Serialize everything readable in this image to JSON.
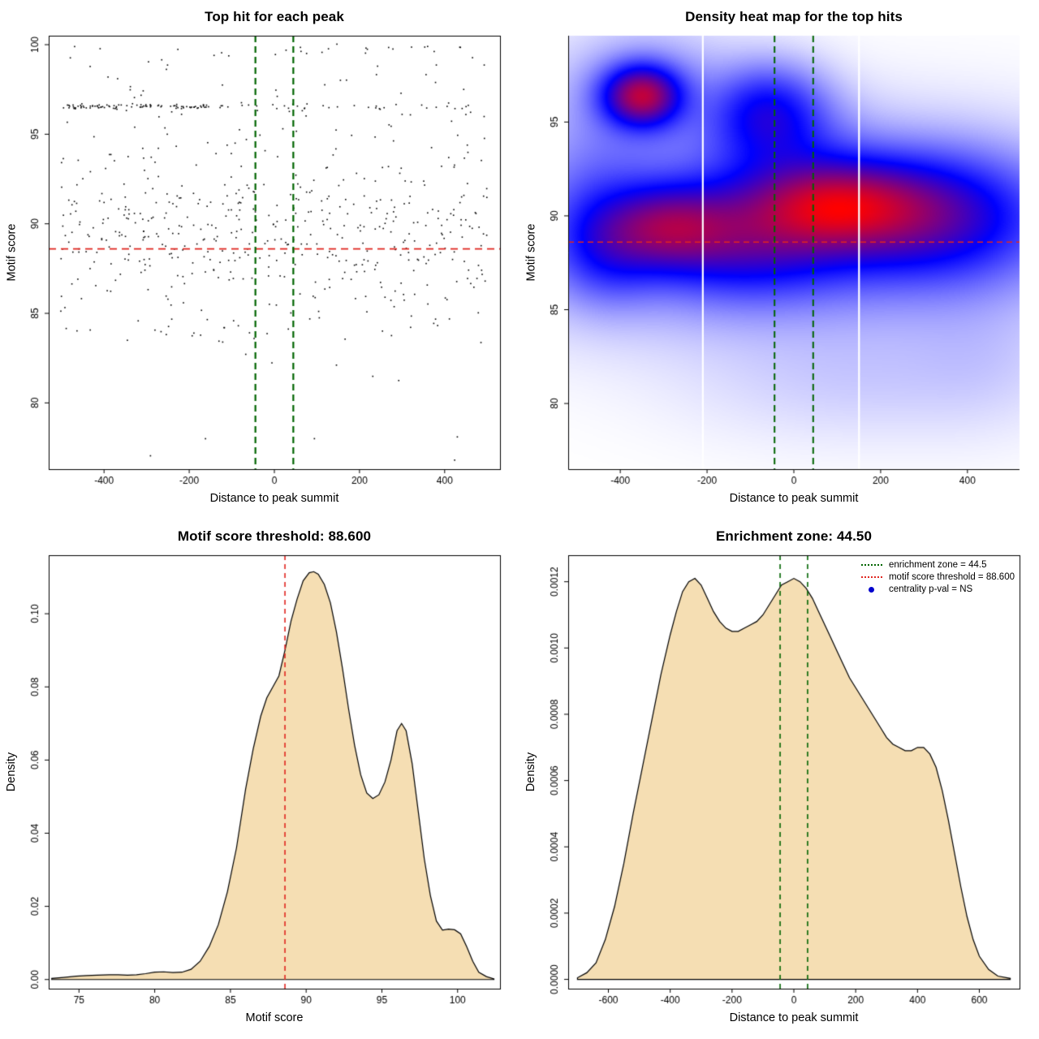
{
  "chart_data": [
    {
      "type": "scatter",
      "title": "Top hit for each peak",
      "xlabel": "Distance to peak summit",
      "ylabel": "Motif score",
      "xlim": [
        -530,
        530
      ],
      "ylim": [
        76.3,
        100.5
      ],
      "xticks": [
        -400,
        -200,
        0,
        200,
        400
      ],
      "xtick_labels": [
        "-400",
        "-200",
        "0",
        "200",
        "400"
      ],
      "yticks": [
        80,
        85,
        90,
        95,
        100
      ],
      "ytick_labels": [
        "80",
        "85",
        "90",
        "95",
        "100"
      ],
      "point_color": "#000000",
      "threshold_line": {
        "y": 88.6,
        "color": "#e0251f"
      },
      "zone_lines": {
        "x": [
          -44.5,
          44.5
        ],
        "color": "#006400"
      },
      "points_generator": {
        "seed": 88600,
        "clusters": [
          {
            "n": 95,
            "x": [
              "uniform",
              -505,
              -120
            ],
            "y": [
              "normal",
              96.55,
              0.07
            ]
          },
          {
            "n": 30,
            "x": [
              "uniform",
              -120,
              500
            ],
            "y": [
              "normal",
              96.55,
              0.1
            ]
          },
          {
            "n": 430,
            "x": [
              "uniform",
              -505,
              505
            ],
            "y": [
              "normal",
              89.5,
              2.1
            ],
            "yclip": [
              84.2,
              95.2
            ]
          },
          {
            "n": 90,
            "x": [
              "uniform",
              -505,
              505
            ],
            "y": [
              "uniform",
              93.5,
              99.9
            ]
          },
          {
            "n": 16,
            "x": [
              "uniform",
              -260,
              460
            ],
            "y": [
              "normal",
              99.8,
              0.1
            ]
          },
          {
            "n": 50,
            "x": [
              "uniform",
              -505,
              505
            ],
            "y": [
              "uniform",
              83.2,
              86.0
            ]
          },
          {
            "n": 10,
            "x": [
              "uniform",
              -480,
              480
            ],
            "y": [
              "uniform",
              76.8,
              83.5
            ]
          }
        ]
      }
    },
    {
      "type": "heatmap",
      "title": "Density heat map for the top hits",
      "xlabel": "Distance to peak summit",
      "ylabel": "Motif score",
      "xlim": [
        -520,
        520
      ],
      "ylim": [
        76.5,
        99.6
      ],
      "xticks": [
        -400,
        -200,
        0,
        200,
        400
      ],
      "xtick_labels": [
        "-400",
        "-200",
        "0",
        "200",
        "400"
      ],
      "yticks": [
        80,
        85,
        90,
        95
      ],
      "ytick_labels": [
        "80",
        "85",
        "90",
        "95"
      ],
      "colormap": [
        "#ffffff",
        "#0000ff",
        "#ff0000"
      ],
      "gaussians": [
        [
          -350,
          96.4,
          55,
          1.0,
          1.6
        ],
        [
          -340,
          96.2,
          120,
          2.0,
          0.3
        ],
        [
          -60,
          95.6,
          80,
          1.5,
          0.65
        ],
        [
          -30,
          93.6,
          110,
          1.8,
          0.35
        ],
        [
          -290,
          89.4,
          95,
          1.4,
          1.0
        ],
        [
          -430,
          88.3,
          80,
          1.8,
          0.5
        ],
        [
          90,
          90.6,
          120,
          1.4,
          1.05
        ],
        [
          210,
          90.3,
          160,
          1.8,
          0.75
        ],
        [
          -110,
          88.9,
          150,
          1.9,
          0.8
        ],
        [
          360,
          89.8,
          150,
          2.2,
          0.5
        ],
        [
          0,
          89.2,
          380,
          3.0,
          0.42
        ],
        [
          -460,
          91.5,
          90,
          2.2,
          0.18
        ],
        [
          150,
          81.5,
          230,
          2.0,
          0.055
        ],
        [
          430,
          82.8,
          110,
          2.3,
          0.045
        ]
      ],
      "white_lines_x": [
        -210,
        150
      ],
      "threshold_line": {
        "y": 88.6,
        "color": "#e0251f"
      },
      "zone_lines": {
        "x": [
          -44.5,
          44.5
        ],
        "color": "#006400"
      }
    },
    {
      "type": "density",
      "title": "Motif score threshold: 88.600",
      "xlabel": "Motif score",
      "ylabel": "Density",
      "xlim": [
        73,
        102.8
      ],
      "ylim": [
        -0.0025,
        0.116
      ],
      "xticks": [
        75,
        80,
        85,
        90,
        95,
        100
      ],
      "xtick_labels": [
        "75",
        "80",
        "85",
        "90",
        "95",
        "100"
      ],
      "yticks": [
        0.0,
        0.02,
        0.04,
        0.06,
        0.08,
        0.1
      ],
      "ytick_labels": [
        "0.00",
        "0.02",
        "0.04",
        "0.06",
        "0.08",
        "0.10"
      ],
      "fill_color": "#f5deb3",
      "line_color": "#000000",
      "vlines": [
        {
          "x": 88.6,
          "color": "#e0251f"
        }
      ],
      "curve": {
        "x": [
          73.2,
          74,
          74.8,
          75.5,
          76.2,
          77,
          77.6,
          78.2,
          78.8,
          79.4,
          80,
          80.6,
          81.2,
          81.8,
          82.4,
          83,
          83.6,
          84.2,
          84.8,
          85.4,
          86,
          86.5,
          87,
          87.4,
          87.8,
          88.2,
          88.6,
          89,
          89.4,
          89.8,
          90.2,
          90.5,
          90.8,
          91.2,
          91.6,
          92,
          92.4,
          92.8,
          93.2,
          93.6,
          94,
          94.4,
          94.8,
          95.2,
          95.6,
          96,
          96.3,
          96.6,
          97,
          97.4,
          97.8,
          98.2,
          98.6,
          99,
          99.4,
          99.8,
          100.2,
          100.6,
          101,
          101.4,
          101.9,
          102.4
        ],
        "y": [
          0.0003,
          0.0006,
          0.0009,
          0.0011,
          0.0012,
          0.0013,
          0.0013,
          0.0012,
          0.0013,
          0.0016,
          0.002,
          0.0021,
          0.0019,
          0.002,
          0.0028,
          0.005,
          0.009,
          0.015,
          0.024,
          0.036,
          0.052,
          0.063,
          0.072,
          0.077,
          0.08,
          0.083,
          0.09,
          0.098,
          0.104,
          0.109,
          0.1112,
          0.1115,
          0.1108,
          0.108,
          0.103,
          0.095,
          0.085,
          0.074,
          0.064,
          0.056,
          0.051,
          0.0495,
          0.0505,
          0.054,
          0.06,
          0.068,
          0.07,
          0.068,
          0.059,
          0.046,
          0.033,
          0.023,
          0.016,
          0.0135,
          0.0138,
          0.0136,
          0.0125,
          0.009,
          0.005,
          0.002,
          0.0008,
          0.0002
        ]
      }
    },
    {
      "type": "density",
      "title": "Enrichment zone: 44.50",
      "xlabel": "Distance to peak summit",
      "ylabel": "Density",
      "xlim": [
        -730,
        730
      ],
      "ylim": [
        -2.8e-05,
        0.00128
      ],
      "xticks": [
        -600,
        -400,
        -200,
        0,
        200,
        400,
        600
      ],
      "xtick_labels": [
        "-600",
        "-400",
        "-200",
        "0",
        "200",
        "400",
        "600"
      ],
      "yticks": [
        0.0,
        0.0002,
        0.0004,
        0.0006,
        0.0008,
        0.001,
        0.0012
      ],
      "ytick_labels": [
        "0.0000",
        "0.0002",
        "0.0004",
        "0.0006",
        "0.0008",
        "0.0010",
        "0.0012"
      ],
      "fill_color": "#f5deb3",
      "line_color": "#000000",
      "vlines": [
        {
          "x": -44.5,
          "color": "#006400"
        },
        {
          "x": 44.5,
          "color": "#006400"
        }
      ],
      "curve": {
        "x": [
          -700,
          -670,
          -640,
          -610,
          -580,
          -550,
          -520,
          -490,
          -460,
          -430,
          -400,
          -380,
          -360,
          -340,
          -320,
          -300,
          -280,
          -260,
          -240,
          -220,
          -200,
          -180,
          -160,
          -140,
          -120,
          -100,
          -80,
          -60,
          -40,
          -20,
          0,
          20,
          40,
          60,
          80,
          100,
          120,
          140,
          160,
          180,
          200,
          220,
          240,
          260,
          280,
          300,
          320,
          340,
          360,
          380,
          400,
          420,
          440,
          460,
          480,
          500,
          520,
          540,
          560,
          580,
          600,
          630,
          660,
          700
        ],
        "y": [
          5e-06,
          2e-05,
          5e-05,
          0.00012,
          0.00022,
          0.00035,
          0.0005,
          0.00064,
          0.00078,
          0.00092,
          0.00104,
          0.00111,
          0.00117,
          0.0012,
          0.00121,
          0.00119,
          0.00115,
          0.00111,
          0.00108,
          0.00106,
          0.00105,
          0.00105,
          0.00106,
          0.00107,
          0.00108,
          0.0011,
          0.00113,
          0.00116,
          0.00119,
          0.0012,
          0.00121,
          0.0012,
          0.00118,
          0.00115,
          0.00111,
          0.00107,
          0.00103,
          0.00099,
          0.00095,
          0.00091,
          0.00088,
          0.00085,
          0.00082,
          0.00079,
          0.00076,
          0.00073,
          0.00071,
          0.0007,
          0.00069,
          0.00069,
          0.0007,
          0.0007,
          0.00068,
          0.00064,
          0.00057,
          0.00048,
          0.00038,
          0.00028,
          0.00019,
          0.00012,
          7e-05,
          3e-05,
          1e-05,
          3e-06
        ]
      },
      "legend": {
        "items": [
          {
            "label": "enrichment zone = 44.5",
            "sample": "dotted-line",
            "color": "#006400"
          },
          {
            "label": "motif score threshold = 88.600",
            "sample": "dotted-line",
            "color": "#e0251f"
          },
          {
            "label": "centrality p-val = NS",
            "sample": "point",
            "color": "#0000cd"
          }
        ]
      }
    }
  ]
}
